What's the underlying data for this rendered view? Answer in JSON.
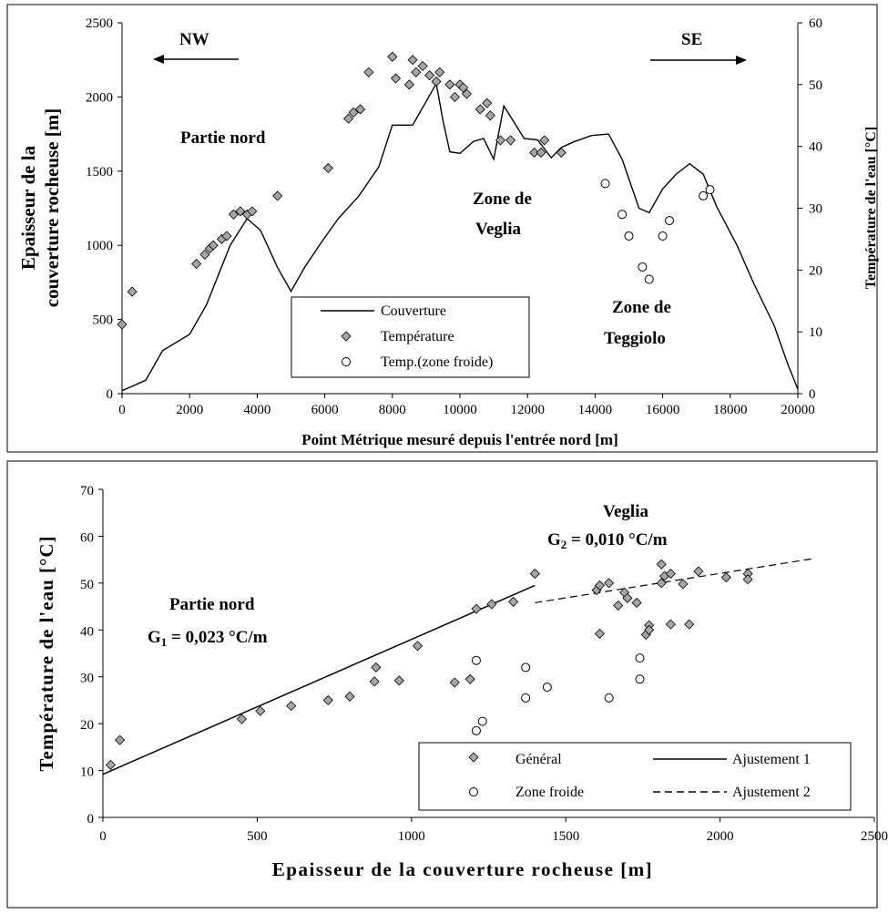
{
  "chart_data": [
    {
      "type": "line",
      "title": "",
      "xlabel": "Point Métrique mesuré depuis l'entrée nord [m]",
      "ylabel_left": [
        "Epaisseur de la",
        "couverture rocheuse [m]"
      ],
      "ylabel_right": "Température de l'eau [°C]",
      "xlim": [
        0,
        20000
      ],
      "ylim_left": [
        0,
        2500
      ],
      "ylim_right": [
        0,
        60
      ],
      "x_ticks": [
        "0",
        "2000",
        "4000",
        "6000",
        "8000",
        "10000",
        "12000",
        "14000",
        "16000",
        "18000",
        "20000"
      ],
      "y_left_ticks": [
        "0",
        "500",
        "1000",
        "1500",
        "2000",
        "2500"
      ],
      "y_right_ticks": [
        "0",
        "10",
        "20",
        "30",
        "40",
        "50",
        "60"
      ],
      "legend_position": "bottom-left",
      "annotations": {
        "nw": "NW",
        "se": "SE",
        "partie_nord": "Partie nord",
        "zone_veglia": [
          "Zone de",
          "Veglia"
        ],
        "zone_teggiolo": [
          "Zone de",
          "Teggiolo"
        ]
      },
      "series": [
        {
          "name": "Couverture",
          "axis": "left",
          "style": "line",
          "points": [
            [
              0,
              20
            ],
            [
              300,
              50
            ],
            [
              700,
              90
            ],
            [
              1200,
              290
            ],
            [
              2000,
              400
            ],
            [
              2500,
              600
            ],
            [
              3200,
              1000
            ],
            [
              3700,
              1180
            ],
            [
              4100,
              1100
            ],
            [
              4600,
              850
            ],
            [
              5000,
              690
            ],
            [
              5400,
              850
            ],
            [
              5900,
              1020
            ],
            [
              6400,
              1180
            ],
            [
              7000,
              1330
            ],
            [
              7600,
              1530
            ],
            [
              8000,
              1810
            ],
            [
              8600,
              1810
            ],
            [
              9000,
              1970
            ],
            [
              9300,
              2090
            ],
            [
              9500,
              1840
            ],
            [
              9700,
              1630
            ],
            [
              10000,
              1620
            ],
            [
              10400,
              1700
            ],
            [
              10700,
              1720
            ],
            [
              11000,
              1580
            ],
            [
              11300,
              1940
            ],
            [
              11600,
              1830
            ],
            [
              11900,
              1720
            ],
            [
              12300,
              1710
            ],
            [
              12700,
              1590
            ],
            [
              13000,
              1660
            ],
            [
              13400,
              1700
            ],
            [
              13900,
              1740
            ],
            [
              14400,
              1750
            ],
            [
              14800,
              1580
            ],
            [
              15300,
              1250
            ],
            [
              15600,
              1220
            ],
            [
              16000,
              1380
            ],
            [
              16400,
              1480
            ],
            [
              16800,
              1550
            ],
            [
              17200,
              1480
            ],
            [
              17600,
              1260
            ],
            [
              18200,
              1000
            ],
            [
              18700,
              740
            ],
            [
              19300,
              460
            ],
            [
              19700,
              200
            ],
            [
              20000,
              30
            ]
          ]
        },
        {
          "name": "Température",
          "axis": "right",
          "style": "diamond",
          "points": [
            [
              0,
              11.2
            ],
            [
              300,
              16.5
            ],
            [
              2200,
              21
            ],
            [
              2450,
              22.5
            ],
            [
              2600,
              23.5
            ],
            [
              2700,
              24
            ],
            [
              2950,
              25
            ],
            [
              3100,
              25.5
            ],
            [
              3300,
              29
            ],
            [
              3500,
              29.5
            ],
            [
              3700,
              29
            ],
            [
              3850,
              29.5
            ],
            [
              4600,
              32
            ],
            [
              6100,
              36.5
            ],
            [
              6700,
              44.5
            ],
            [
              6850,
              45.5
            ],
            [
              7050,
              46
            ],
            [
              7300,
              52
            ],
            [
              8000,
              54.5
            ],
            [
              8100,
              51
            ],
            [
              8500,
              50
            ],
            [
              8600,
              54
            ],
            [
              8700,
              52
            ],
            [
              8900,
              53
            ],
            [
              9100,
              51.5
            ],
            [
              9300,
              50.5
            ],
            [
              9400,
              52
            ],
            [
              9700,
              50
            ],
            [
              9850,
              48
            ],
            [
              10000,
              50
            ],
            [
              10100,
              49.5
            ],
            [
              10200,
              48.5
            ],
            [
              10600,
              46
            ],
            [
              10800,
              47
            ],
            [
              10900,
              45
            ],
            [
              11200,
              41
            ],
            [
              11500,
              41
            ],
            [
              12200,
              39
            ],
            [
              12400,
              39
            ],
            [
              12500,
              41
            ],
            [
              13000,
              39
            ]
          ]
        },
        {
          "name": "Temp.(zone froide)",
          "axis": "right",
          "style": "circle",
          "points": [
            [
              14300,
              34
            ],
            [
              14800,
              29
            ],
            [
              15000,
              25.5
            ],
            [
              15400,
              20.5
            ],
            [
              15600,
              18.5
            ],
            [
              16000,
              25.5
            ],
            [
              16200,
              28
            ],
            [
              17200,
              32
            ],
            [
              17400,
              33
            ]
          ]
        }
      ]
    },
    {
      "type": "scatter",
      "title": "",
      "xlabel": "Epaisseur de la couverture rocheuse [m]",
      "ylabel": "Température de l'eau [°C]",
      "xlim": [
        0,
        2500
      ],
      "ylim": [
        0,
        70
      ],
      "x_ticks": [
        "0",
        "500",
        "1000",
        "1500",
        "2000",
        "2500"
      ],
      "y_ticks": [
        "0",
        "10",
        "20",
        "30",
        "40",
        "50",
        "60",
        "70"
      ],
      "legend_position": "bottom-right",
      "annotations": {
        "partie_nord": "Partie nord",
        "g1_label": "G",
        "g1_sub": "1",
        "g1_value": " = 0,023 °C/m",
        "veglia": "Veglia",
        "g2_label": "G",
        "g2_sub": "2",
        "g2_value": " = 0,010 °C/m"
      },
      "series": [
        {
          "name": "Général",
          "style": "diamond",
          "points": [
            [
              25,
              11.2
            ],
            [
              55,
              16.5
            ],
            [
              450,
              21
            ],
            [
              510,
              22.7
            ],
            [
              610,
              23.8
            ],
            [
              730,
              25
            ],
            [
              800,
              25.8
            ],
            [
              880,
              29
            ],
            [
              885,
              32
            ],
            [
              960,
              29.2
            ],
            [
              1020,
              36.6
            ],
            [
              1140,
              28.8
            ],
            [
              1190,
              29.5
            ],
            [
              1210,
              44.5
            ],
            [
              1260,
              45.5
            ],
            [
              1330,
              46
            ],
            [
              1400,
              52
            ],
            [
              1600,
              48.5
            ],
            [
              1610,
              39.2
            ],
            [
              1610,
              49.5
            ],
            [
              1640,
              50
            ],
            [
              1670,
              45.2
            ],
            [
              1690,
              48
            ],
            [
              1700,
              46.8
            ],
            [
              1730,
              45.8
            ],
            [
              1760,
              39
            ],
            [
              1770,
              41
            ],
            [
              1770,
              40
            ],
            [
              1810,
              50
            ],
            [
              1810,
              54
            ],
            [
              1820,
              51.5
            ],
            [
              1840,
              52
            ],
            [
              1840,
              41.2
            ],
            [
              1880,
              49.8
            ],
            [
              1900,
              41.2
            ],
            [
              1930,
              52.5
            ],
            [
              2020,
              51.2
            ],
            [
              2090,
              52
            ],
            [
              2090,
              50.8
            ]
          ]
        },
        {
          "name": "Zone froide",
          "style": "circle",
          "points": [
            [
              1210,
              33.5
            ],
            [
              1210,
              18.5
            ],
            [
              1230,
              20.5
            ],
            [
              1370,
              32
            ],
            [
              1370,
              25.5
            ],
            [
              1440,
              27.8
            ],
            [
              1640,
              25.5
            ],
            [
              1740,
              34
            ],
            [
              1740,
              29.5
            ]
          ]
        },
        {
          "name": "Ajustement 1",
          "style": "solid",
          "points": [
            [
              0,
              9.2
            ],
            [
              1400,
              49.5
            ]
          ]
        },
        {
          "name": "Ajustement 2",
          "style": "dashed",
          "points": [
            [
              1400,
              45.8
            ],
            [
              2300,
              55.2
            ]
          ]
        }
      ]
    }
  ]
}
